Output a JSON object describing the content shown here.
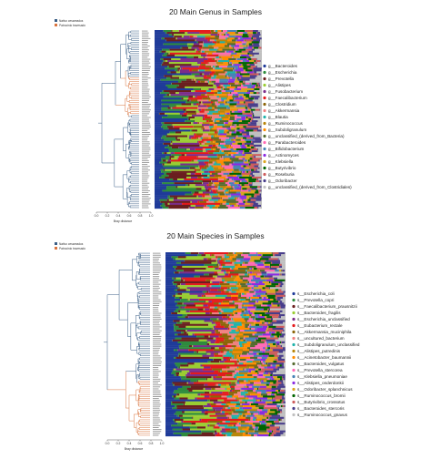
{
  "chart_data": [
    {
      "type": "bar",
      "subtype": "stacked-100-percent with dendrogram",
      "title": "20 Main Genus in Samples",
      "group_legend": [
        {
          "name": "Nativo cesareados",
          "color": "#3b5f86"
        },
        {
          "name": "Patrocinio travesado",
          "color": "#d9743f"
        }
      ],
      "xlabel": "Bray distance",
      "dendrogram_axis_ticks": [
        "0.0",
        "0.2",
        "0.4",
        "0.6",
        "0.8",
        "1.0"
      ],
      "series": [
        {
          "name": "g__Bacteroides",
          "color": "#1f3b99"
        },
        {
          "name": "g__Escherichia",
          "color": "#2e8b3e"
        },
        {
          "name": "g__Prevotella",
          "color": "#6a1f1f"
        },
        {
          "name": "g__Alistipes",
          "color": "#9acd32"
        },
        {
          "name": "g__Fusobacterium",
          "color": "#7b2d8b"
        },
        {
          "name": "g__Faecalibacterium",
          "color": "#e41a1c"
        },
        {
          "name": "g__Clostridium",
          "color": "#8b6508"
        },
        {
          "name": "g__Akkermansia",
          "color": "#f08080"
        },
        {
          "name": "g__Blautia",
          "color": "#20b2aa"
        },
        {
          "name": "g__Ruminococcus",
          "color": "#b8860b"
        },
        {
          "name": "g__Subdoligranulum",
          "color": "#ff8c00"
        },
        {
          "name": "g__unclassified_(derived_from_Bacteria)",
          "color": "#556b2f"
        },
        {
          "name": "g__Parabacteroides",
          "color": "#ff69b4"
        },
        {
          "name": "g__Bifidobacterium",
          "color": "#4682b4"
        },
        {
          "name": "g__Actinomyces",
          "color": "#8a2be2"
        },
        {
          "name": "g__Klebsiella",
          "color": "#daa520"
        },
        {
          "name": "g__Butyrivibrio",
          "color": "#006400"
        },
        {
          "name": "g__Roseburia",
          "color": "#cd5c5c"
        },
        {
          "name": "g__Odoribacter",
          "color": "#483d8b"
        },
        {
          "name": "g__unclassified_(derived_from_Clostridiales)",
          "color": "#c0c0c0"
        }
      ],
      "n_samples": 95
    },
    {
      "type": "bar",
      "subtype": "stacked-100-percent with dendrogram",
      "title": "20 Main Species in Samples",
      "group_legend": [
        {
          "name": "Nativo cesareados",
          "color": "#3b5f86"
        },
        {
          "name": "Patrocinio travesado",
          "color": "#d9743f"
        }
      ],
      "xlabel": "Bray distance",
      "dendrogram_axis_ticks": [
        "0.0",
        "0.2",
        "0.4",
        "0.6",
        "0.8",
        "1.0"
      ],
      "series": [
        {
          "name": "s__Escherichia_coli",
          "color": "#1f3b99"
        },
        {
          "name": "s__Prevotella_copri",
          "color": "#2e8b3e"
        },
        {
          "name": "s__Faecalibacterium_prausnitzii",
          "color": "#6a1f1f"
        },
        {
          "name": "s__Bacteroides_fragilis",
          "color": "#9acd32"
        },
        {
          "name": "s__Escherichia_unclassified",
          "color": "#7b2d8b"
        },
        {
          "name": "s__Eubacterium_rectale",
          "color": "#e41a1c"
        },
        {
          "name": "s__Akkermansia_muciniphila",
          "color": "#8b6508"
        },
        {
          "name": "s__uncultured_bacterium",
          "color": "#f08080"
        },
        {
          "name": "s__Subdoligranulum_unclassified",
          "color": "#20b2aa"
        },
        {
          "name": "s__Alistipes_putredinis",
          "color": "#b8860b"
        },
        {
          "name": "s__Acinetobacter_baumannii",
          "color": "#ff8c00"
        },
        {
          "name": "s__Bacteroides_vulgatus",
          "color": "#556b2f"
        },
        {
          "name": "s__Prevotella_stercorea",
          "color": "#ff69b4"
        },
        {
          "name": "s__Klebsiella_pneumoniae",
          "color": "#4682b4"
        },
        {
          "name": "s__Alistipes_onderdonkii",
          "color": "#8a2be2"
        },
        {
          "name": "s__Odoribacter_splanchnicus",
          "color": "#daa520"
        },
        {
          "name": "s__Ruminococcus_bromii",
          "color": "#006400"
        },
        {
          "name": "s__Butyrivibrio_crossotus",
          "color": "#cd5c5c"
        },
        {
          "name": "s__Bacteroides_stercoris",
          "color": "#483d8b"
        },
        {
          "name": "s__Ruminococcus_gnavus",
          "color": "#c0c0c0"
        }
      ],
      "n_samples": 95
    }
  ]
}
